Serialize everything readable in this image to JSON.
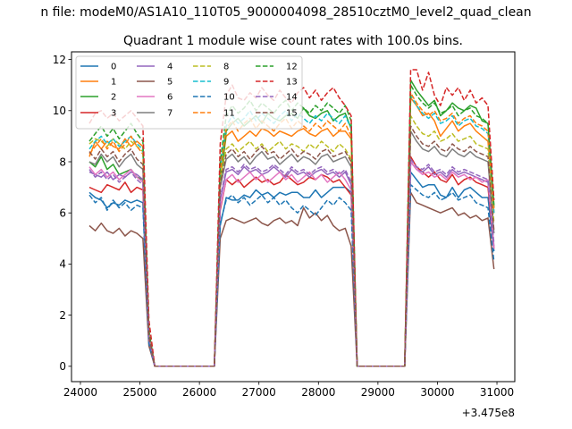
{
  "figure": {
    "suptitle": "n file: modeM0/AS1A10_110T05_9000004098_28510cztM0_level2_quad_clean",
    "title": "Quadrant 1 module wise count rates with 100.0s bins.",
    "offset_label": "+3.475e8"
  },
  "chart_data": {
    "type": "line",
    "title": "Quadrant 1 module wise count rates with 100.0s bins.",
    "x_offset": 347500000,
    "xlim": [
      23850,
      31300
    ],
    "ylim": [
      -0.6,
      12.3
    ],
    "xticks": [
      24000,
      25000,
      26000,
      27000,
      28000,
      29000,
      30000,
      31000
    ],
    "yticks": [
      0,
      2,
      4,
      6,
      8,
      10,
      12
    ],
    "grid": false,
    "legend": {
      "placement": "upper-left",
      "columns": 4
    },
    "x": [
      24150,
      24250,
      24350,
      24450,
      24550,
      24650,
      24750,
      24850,
      24950,
      25050,
      25150,
      25250,
      25350,
      25450,
      25550,
      25650,
      25750,
      25850,
      25950,
      26050,
      26150,
      26250,
      26350,
      26450,
      26550,
      26650,
      26750,
      26850,
      26950,
      27050,
      27150,
      27250,
      27350,
      27450,
      27550,
      27650,
      27750,
      27850,
      27950,
      28050,
      28150,
      28250,
      28350,
      28450,
      28550,
      28650,
      28750,
      28850,
      28950,
      29050,
      29150,
      29250,
      29350,
      29450,
      29550,
      29650,
      29750,
      29850,
      29950,
      30050,
      30150,
      30250,
      30350,
      30450,
      30550,
      30650,
      30750,
      30850,
      30950
    ],
    "series": [
      {
        "name": "0",
        "color": "#1f77b4",
        "dash": "solid",
        "values": [
          6.8,
          6.6,
          6.5,
          6.2,
          6.4,
          6.3,
          6.5,
          6.4,
          6.5,
          6.4,
          1.0,
          0,
          0,
          0,
          0,
          0,
          0,
          0,
          0,
          0,
          0,
          0,
          5.5,
          6.6,
          6.5,
          6.5,
          6.7,
          6.6,
          6.9,
          6.7,
          6.8,
          6.6,
          6.8,
          6.7,
          6.8,
          6.8,
          6.6,
          6.6,
          6.9,
          6.6,
          6.8,
          7.0,
          7.0,
          7.0,
          6.8,
          0,
          0,
          0,
          0,
          0,
          0,
          0,
          0,
          0,
          7.6,
          7.3,
          7.0,
          7.1,
          7.1,
          6.7,
          6.6,
          7.0,
          6.6,
          6.9,
          7.0,
          6.8,
          6.6,
          6.6,
          4.5
        ]
      },
      {
        "name": "1",
        "color": "#ff7f0e",
        "dash": "solid",
        "values": [
          8.2,
          8.8,
          8.5,
          8.8,
          8.6,
          8.5,
          8.9,
          8.6,
          8.8,
          8.6,
          1.3,
          0,
          0,
          0,
          0,
          0,
          0,
          0,
          0,
          0,
          0,
          0,
          7.3,
          9.0,
          9.2,
          8.8,
          9.0,
          9.2,
          9.0,
          9.3,
          9.2,
          9.0,
          9.2,
          9.1,
          9.0,
          9.2,
          9.3,
          9.1,
          9.0,
          9.2,
          9.3,
          9.0,
          9.2,
          9.2,
          8.9,
          0,
          0,
          0,
          0,
          0,
          0,
          0,
          0,
          0,
          10.5,
          10.2,
          9.8,
          9.9,
          9.6,
          9.0,
          9.3,
          9.6,
          9.2,
          9.4,
          9.5,
          9.2,
          9.0,
          8.8,
          6.0
        ]
      },
      {
        "name": "2",
        "color": "#2ca02c",
        "dash": "solid",
        "values": [
          8.0,
          7.8,
          8.2,
          7.7,
          7.9,
          7.5,
          7.6,
          7.7,
          7.4,
          7.3,
          1.2,
          0,
          0,
          0,
          0,
          0,
          0,
          0,
          0,
          0,
          0,
          0,
          7.1,
          9.2,
          9.5,
          9.7,
          9.4,
          9.6,
          9.8,
          9.5,
          9.9,
          9.7,
          9.6,
          9.8,
          9.9,
          9.7,
          10.1,
          9.8,
          9.7,
          9.9,
          10.0,
          9.6,
          9.8,
          9.9,
          9.3,
          0,
          0,
          0,
          0,
          0,
          0,
          0,
          0,
          0,
          11.2,
          10.8,
          10.5,
          10.2,
          10.4,
          9.8,
          10.0,
          10.3,
          10.1,
          10.0,
          10.2,
          10.1,
          9.6,
          9.5,
          6.2
        ]
      },
      {
        "name": "3",
        "color": "#d62728",
        "dash": "solid",
        "values": [
          7.0,
          6.9,
          6.8,
          7.1,
          7.0,
          6.9,
          7.2,
          6.8,
          7.0,
          6.9,
          1.0,
          0,
          0,
          0,
          0,
          0,
          0,
          0,
          0,
          0,
          0,
          0,
          6.1,
          7.3,
          7.1,
          7.3,
          7.0,
          7.2,
          7.4,
          7.2,
          7.3,
          7.1,
          7.2,
          7.5,
          7.3,
          7.1,
          7.2,
          7.4,
          7.3,
          7.5,
          7.4,
          7.2,
          7.3,
          7.0,
          6.7,
          0,
          0,
          0,
          0,
          0,
          0,
          0,
          0,
          0,
          8.2,
          7.8,
          7.6,
          7.4,
          7.6,
          7.3,
          7.2,
          7.5,
          7.1,
          7.3,
          7.4,
          7.2,
          7.1,
          7.0,
          4.6
        ]
      },
      {
        "name": "4",
        "color": "#9467bd",
        "dash": "solid",
        "values": [
          7.6,
          7.5,
          7.4,
          7.6,
          7.3,
          7.5,
          7.4,
          7.6,
          7.5,
          7.3,
          1.1,
          0,
          0,
          0,
          0,
          0,
          0,
          0,
          0,
          0,
          0,
          0,
          6.5,
          7.6,
          7.7,
          7.5,
          7.8,
          7.6,
          7.7,
          7.5,
          7.6,
          7.8,
          7.6,
          7.4,
          7.7,
          7.5,
          7.6,
          7.4,
          7.6,
          7.7,
          7.5,
          7.6,
          7.4,
          7.6,
          7.1,
          0,
          0,
          0,
          0,
          0,
          0,
          0,
          0,
          0,
          8.0,
          7.7,
          7.6,
          7.8,
          7.5,
          7.6,
          7.4,
          7.7,
          7.5,
          7.6,
          7.5,
          7.4,
          7.3,
          7.2,
          4.7
        ]
      },
      {
        "name": "5",
        "color": "#8c564b",
        "dash": "solid",
        "values": [
          5.5,
          5.3,
          5.6,
          5.3,
          5.2,
          5.4,
          5.1,
          5.3,
          5.2,
          5.0,
          0.8,
          0,
          0,
          0,
          0,
          0,
          0,
          0,
          0,
          0,
          0,
          0,
          5.0,
          5.7,
          5.8,
          5.7,
          5.6,
          5.7,
          5.8,
          5.6,
          5.5,
          5.7,
          5.8,
          5.6,
          5.7,
          5.5,
          6.2,
          5.8,
          6.0,
          5.7,
          5.9,
          5.5,
          5.3,
          5.4,
          4.7,
          0,
          0,
          0,
          0,
          0,
          0,
          0,
          0,
          0,
          6.8,
          6.4,
          6.3,
          6.2,
          6.1,
          6.0,
          6.1,
          6.2,
          5.9,
          6.0,
          5.8,
          5.9,
          5.7,
          5.8,
          3.8
        ]
      },
      {
        "name": "6",
        "color": "#e377c2",
        "dash": "solid",
        "values": [
          7.8,
          7.5,
          7.7,
          7.4,
          7.6,
          7.3,
          7.5,
          7.7,
          7.4,
          7.2,
          1.1,
          0,
          0,
          0,
          0,
          0,
          0,
          0,
          0,
          0,
          0,
          0,
          6.2,
          7.3,
          7.5,
          7.2,
          7.4,
          7.6,
          7.3,
          7.5,
          7.2,
          7.4,
          7.6,
          7.3,
          7.5,
          7.2,
          7.4,
          7.6,
          7.3,
          7.5,
          7.2,
          7.4,
          7.6,
          7.3,
          6.9,
          0,
          0,
          0,
          0,
          0,
          0,
          0,
          0,
          0,
          8.0,
          7.7,
          7.5,
          7.6,
          7.4,
          7.5,
          7.3,
          7.6,
          7.4,
          7.5,
          7.3,
          7.4,
          7.2,
          7.3,
          4.6
        ]
      },
      {
        "name": "7",
        "color": "#7f7f7f",
        "dash": "solid",
        "values": [
          8.0,
          7.9,
          8.3,
          8.0,
          8.2,
          7.8,
          8.1,
          8.3,
          7.9,
          7.7,
          1.2,
          0,
          0,
          0,
          0,
          0,
          0,
          0,
          0,
          0,
          0,
          0,
          7.0,
          8.1,
          8.3,
          8.0,
          8.2,
          7.9,
          8.2,
          8.4,
          8.1,
          8.2,
          7.9,
          8.1,
          8.3,
          8.0,
          8.2,
          8.1,
          7.9,
          8.2,
          8.3,
          8.0,
          8.1,
          8.2,
          7.8,
          0,
          0,
          0,
          0,
          0,
          0,
          0,
          0,
          0,
          9.2,
          8.8,
          8.5,
          8.4,
          8.6,
          8.3,
          8.2,
          8.5,
          8.3,
          8.2,
          8.4,
          8.2,
          8.1,
          8.0,
          5.2
        ]
      },
      {
        "name": "8",
        "color": "#bcbd22",
        "dash": "dashed",
        "values": [
          8.7,
          8.9,
          8.8,
          8.6,
          8.9,
          8.7,
          8.5,
          8.8,
          8.6,
          8.4,
          1.2,
          0,
          0,
          0,
          0,
          0,
          0,
          0,
          0,
          0,
          0,
          0,
          7.4,
          8.5,
          8.7,
          8.4,
          8.6,
          8.8,
          8.5,
          8.7,
          8.4,
          8.6,
          8.8,
          8.5,
          8.7,
          8.6,
          8.4,
          8.7,
          8.5,
          8.8,
          8.6,
          8.4,
          8.7,
          8.5,
          8.1,
          0,
          0,
          0,
          0,
          0,
          0,
          0,
          0,
          0,
          9.8,
          9.4,
          9.1,
          9.0,
          9.2,
          8.8,
          8.9,
          9.1,
          8.8,
          8.9,
          9.0,
          8.7,
          8.6,
          8.5,
          5.6
        ]
      },
      {
        "name": "9",
        "color": "#17becf",
        "dash": "dashed",
        "values": [
          8.5,
          8.8,
          9.0,
          8.7,
          8.9,
          8.6,
          8.8,
          9.0,
          8.7,
          8.5,
          1.3,
          0,
          0,
          0,
          0,
          0,
          0,
          0,
          0,
          0,
          0,
          0,
          7.8,
          9.4,
          9.8,
          9.5,
          9.7,
          10.0,
          9.6,
          9.9,
          9.7,
          9.5,
          9.8,
          10.0,
          9.6,
          9.9,
          9.7,
          9.5,
          9.8,
          9.6,
          9.9,
          9.7,
          9.5,
          9.8,
          9.3,
          0,
          0,
          0,
          0,
          0,
          0,
          0,
          0,
          0,
          10.6,
          10.2,
          9.9,
          9.7,
          9.9,
          9.5,
          9.6,
          9.8,
          9.4,
          9.6,
          9.7,
          9.4,
          9.3,
          9.1,
          6.0
        ]
      },
      {
        "name": "10",
        "color": "#1f77b4",
        "dash": "dashed",
        "values": [
          6.7,
          6.4,
          6.6,
          6.1,
          6.5,
          6.2,
          6.4,
          6.1,
          6.3,
          6.2,
          0.9,
          0,
          0,
          0,
          0,
          0,
          0,
          0,
          0,
          0,
          0,
          0,
          5.6,
          6.5,
          6.7,
          6.4,
          6.6,
          6.3,
          6.5,
          6.7,
          6.4,
          6.6,
          6.3,
          6.5,
          6.2,
          6.0,
          6.3,
          6.1,
          5.9,
          6.2,
          6.5,
          6.3,
          6.6,
          6.4,
          6.1,
          0,
          0,
          0,
          0,
          0,
          0,
          0,
          0,
          0,
          7.1,
          6.9,
          6.7,
          6.6,
          6.8,
          6.5,
          6.6,
          6.8,
          6.5,
          6.6,
          6.7,
          6.4,
          6.3,
          6.2,
          4.1
        ]
      },
      {
        "name": "11",
        "color": "#ff7f0e",
        "dash": "dashed",
        "values": [
          8.3,
          8.6,
          8.9,
          8.5,
          8.8,
          8.4,
          8.7,
          9.0,
          8.6,
          8.3,
          1.3,
          0,
          0,
          0,
          0,
          0,
          0,
          0,
          0,
          0,
          0,
          0,
          7.6,
          9.3,
          9.6,
          9.2,
          9.5,
          9.7,
          9.3,
          9.6,
          9.4,
          9.2,
          9.5,
          9.7,
          9.3,
          9.6,
          9.4,
          9.2,
          9.5,
          9.3,
          9.6,
          9.4,
          9.2,
          9.5,
          9.0,
          0,
          0,
          0,
          0,
          0,
          0,
          0,
          0,
          0,
          10.7,
          10.3,
          10.0,
          9.8,
          10.0,
          9.6,
          9.7,
          9.9,
          9.5,
          9.7,
          9.8,
          9.5,
          9.4,
          9.2,
          6.1
        ]
      },
      {
        "name": "12",
        "color": "#2ca02c",
        "dash": "dashed",
        "values": [
          8.8,
          9.1,
          9.4,
          9.0,
          9.3,
          8.9,
          9.2,
          9.5,
          9.1,
          8.8,
          1.4,
          0,
          0,
          0,
          0,
          0,
          0,
          0,
          0,
          0,
          0,
          0,
          8.0,
          9.8,
          10.2,
          9.9,
          10.1,
          10.4,
          10.0,
          10.3,
          10.1,
          9.9,
          10.2,
          10.4,
          10.0,
          10.3,
          10.1,
          9.9,
          10.2,
          10.0,
          10.3,
          10.1,
          9.9,
          10.2,
          9.6,
          0,
          0,
          0,
          0,
          0,
          0,
          0,
          0,
          0,
          11.0,
          10.6,
          10.3,
          10.1,
          10.3,
          9.9,
          10.0,
          10.2,
          9.8,
          10.0,
          10.1,
          9.8,
          9.7,
          9.5,
          6.3
        ]
      },
      {
        "name": "13",
        "color": "#d62728",
        "dash": "dashed",
        "values": [
          9.5,
          9.9,
          10.0,
          9.7,
          9.9,
          9.6,
          9.8,
          10.0,
          9.7,
          9.4,
          1.8,
          0,
          0,
          0,
          0,
          0,
          0,
          0,
          0,
          0,
          0,
          0,
          8.7,
          10.6,
          11.0,
          10.5,
          10.4,
          10.7,
          10.5,
          10.9,
          10.6,
          10.4,
          10.8,
          10.5,
          10.3,
          10.7,
          10.9,
          10.5,
          10.8,
          10.4,
          10.7,
          10.9,
          10.5,
          10.2,
          9.8,
          0,
          0,
          0,
          0,
          0,
          0,
          0,
          0,
          0,
          11.6,
          11.6,
          10.8,
          11.5,
          10.6,
          10.2,
          10.9,
          10.6,
          10.9,
          10.4,
          10.8,
          10.3,
          10.5,
          10.2,
          6.5
        ]
      },
      {
        "name": "14",
        "color": "#9467bd",
        "dash": "dashed",
        "values": [
          7.7,
          7.4,
          7.6,
          7.3,
          7.5,
          7.2,
          7.4,
          7.6,
          7.3,
          7.1,
          1.1,
          0,
          0,
          0,
          0,
          0,
          0,
          0,
          0,
          0,
          0,
          0,
          6.6,
          7.7,
          7.8,
          7.6,
          7.9,
          7.7,
          7.8,
          7.6,
          7.7,
          7.9,
          7.7,
          7.5,
          7.8,
          7.6,
          7.7,
          7.5,
          7.7,
          7.8,
          7.6,
          7.7,
          7.5,
          7.7,
          7.2,
          0,
          0,
          0,
          0,
          0,
          0,
          0,
          0,
          0,
          8.1,
          7.8,
          7.7,
          7.9,
          7.6,
          7.7,
          7.5,
          7.8,
          7.6,
          7.7,
          7.6,
          7.5,
          7.4,
          7.3,
          4.8
        ]
      },
      {
        "name": "15",
        "color": "#8c564b",
        "dash": "dashed",
        "values": [
          8.4,
          8.1,
          8.5,
          8.2,
          8.4,
          8.0,
          8.3,
          8.5,
          8.1,
          7.9,
          1.2,
          0,
          0,
          0,
          0,
          0,
          0,
          0,
          0,
          0,
          0,
          0,
          7.1,
          8.3,
          8.5,
          8.2,
          8.4,
          8.1,
          8.4,
          8.6,
          8.3,
          8.4,
          8.1,
          8.3,
          8.5,
          8.2,
          8.4,
          8.3,
          8.1,
          8.4,
          8.5,
          8.2,
          8.3,
          8.4,
          8.0,
          0,
          0,
          0,
          0,
          0,
          0,
          0,
          0,
          0,
          9.4,
          9.0,
          8.7,
          8.6,
          8.8,
          8.5,
          8.4,
          8.7,
          8.5,
          8.4,
          8.6,
          8.4,
          8.3,
          8.2,
          5.3
        ]
      }
    ]
  }
}
